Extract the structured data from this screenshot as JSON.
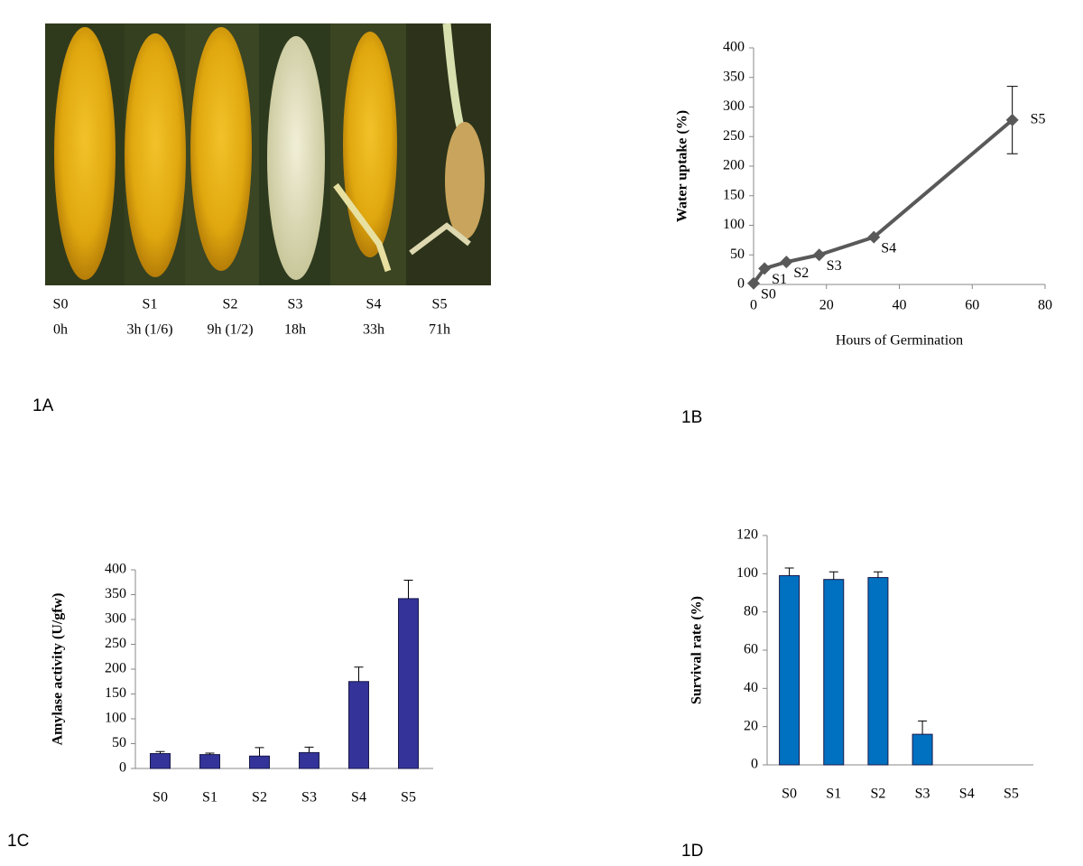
{
  "figure_1a": {
    "panel": "1A",
    "stages": [
      "S0",
      "S1",
      "S2",
      "S3",
      "S4",
      "S5"
    ],
    "times": [
      "0h",
      "3h (1/6)",
      "9h (1/2)",
      "18h",
      "33h",
      "71h"
    ]
  },
  "chart_data": [
    {
      "panel": "1B",
      "type": "line",
      "x": [
        0,
        3,
        9,
        18,
        33,
        71
      ],
      "values": [
        2,
        27,
        38,
        50,
        80,
        278
      ],
      "errors": [
        null,
        null,
        null,
        null,
        null,
        57
      ],
      "point_labels": [
        "S0",
        "S1",
        "S2",
        "S3",
        "S4",
        "S5"
      ],
      "color": "#595959",
      "xlabel": "Hours of Germination",
      "ylabel": "Water uptake (%)",
      "xlim": [
        0,
        80
      ],
      "xticks": [
        0,
        20,
        40,
        60,
        80
      ],
      "ylim": [
        0,
        400
      ],
      "yticks": [
        0,
        50,
        100,
        150,
        200,
        250,
        300,
        350,
        400
      ]
    },
    {
      "panel": "1C",
      "type": "bar",
      "categories": [
        "S0",
        "S1",
        "S2",
        "S3",
        "S4",
        "S5"
      ],
      "values": [
        30,
        28,
        25,
        32,
        175,
        342
      ],
      "errors": [
        4,
        3,
        17,
        11,
        29,
        37
      ],
      "color": "#333399",
      "ylabel": "Amylase activity (U/gfw)",
      "ylim": [
        0,
        400
      ],
      "yticks": [
        0,
        50,
        100,
        150,
        200,
        250,
        300,
        350,
        400
      ]
    },
    {
      "panel": "1D",
      "type": "bar",
      "categories": [
        "S0",
        "S1",
        "S2",
        "S3",
        "S4",
        "S5"
      ],
      "values": [
        99,
        97,
        98,
        16,
        0,
        0
      ],
      "errors": [
        4,
        4,
        3,
        7,
        null,
        null
      ],
      "color": "#0070c0",
      "ylabel": "Survival rate (%)",
      "ylim": [
        0,
        120
      ],
      "yticks": [
        0,
        20,
        40,
        60,
        80,
        100,
        120
      ]
    }
  ]
}
